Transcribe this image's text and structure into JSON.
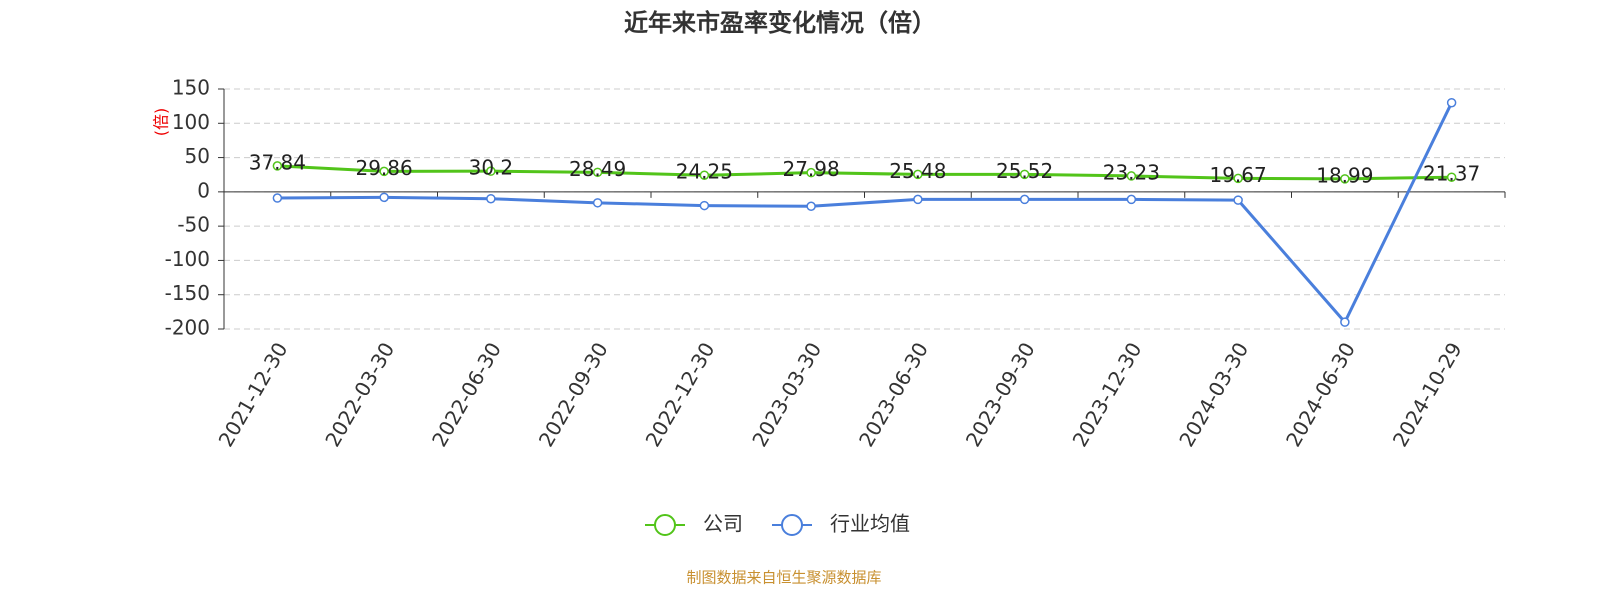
{
  "chart_data": {
    "type": "line",
    "title": "近年来市盈率变化情况（倍）",
    "y_label": "(倍)",
    "source": "制图数据来自恒生聚源数据库",
    "categories": [
      "2021-12-30",
      "2022-03-30",
      "2022-06-30",
      "2022-09-30",
      "2022-12-30",
      "2023-03-30",
      "2023-06-30",
      "2023-09-30",
      "2023-12-30",
      "2024-03-30",
      "2024-06-30",
      "2024-10-29"
    ],
    "series": [
      {
        "name": "公司",
        "color": "#52c41a",
        "values": [
          37.84,
          29.86,
          30.2,
          28.49,
          24.25,
          27.98,
          25.48,
          25.52,
          23.23,
          19.67,
          18.99,
          21.37
        ],
        "show_labels": true
      },
      {
        "name": "行业均值",
        "color": "#4a7fdc",
        "values": [
          -9,
          -8,
          -10,
          -16,
          -20,
          -21,
          -11,
          -11,
          -11,
          -12,
          -190,
          130
        ],
        "show_labels": false
      }
    ],
    "ylim": [
      -200,
      150
    ],
    "yticks": [
      -200,
      -150,
      -100,
      -50,
      0,
      50,
      100,
      150
    ],
    "grid": true
  }
}
